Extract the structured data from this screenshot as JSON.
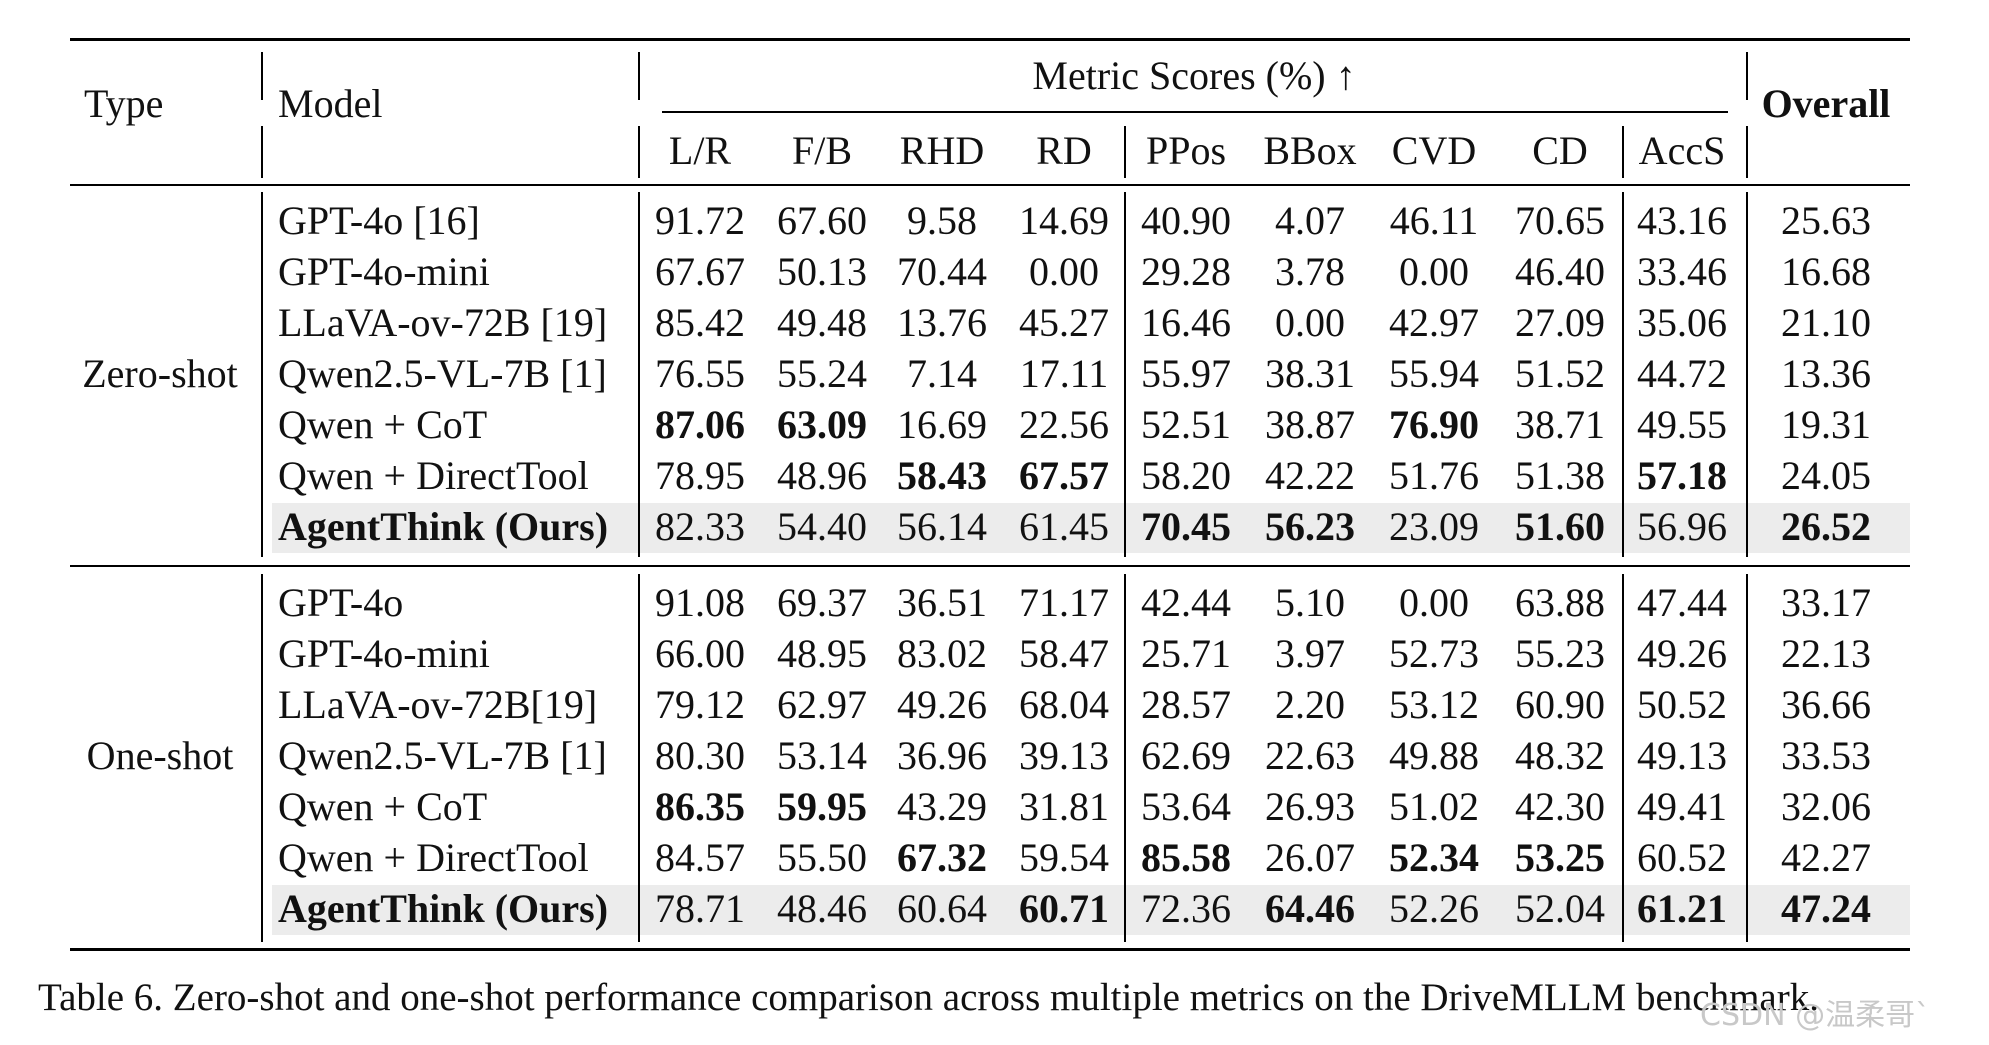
{
  "headers": {
    "type": "Type",
    "model": "Model",
    "metric_group": "Metric Scores (%) ↑",
    "overall": "Overall",
    "metrics": [
      "L/R",
      "F/B",
      "RHD",
      "RD",
      "PPos",
      "BBox",
      "CVD",
      "CD",
      "AccS"
    ]
  },
  "groups": [
    {
      "label": "Zero-shot",
      "rows": [
        {
          "model": "GPT-4o [16]",
          "values": [
            "91.72",
            "67.60",
            "9.58",
            "14.69",
            "40.90",
            "4.07",
            "46.11",
            "70.65",
            "43.16"
          ],
          "overall": "25.63",
          "bold": [],
          "model_bold": false,
          "highlight": false
        },
        {
          "model": "GPT-4o-mini",
          "values": [
            "67.67",
            "50.13",
            "70.44",
            "0.00",
            "29.28",
            "3.78",
            "0.00",
            "46.40",
            "33.46"
          ],
          "overall": "16.68",
          "bold": [],
          "model_bold": false,
          "highlight": false
        },
        {
          "model": "LLaVA-ov-72B [19]",
          "values": [
            "85.42",
            "49.48",
            "13.76",
            "45.27",
            "16.46",
            "0.00",
            "42.97",
            "27.09",
            "35.06"
          ],
          "overall": "21.10",
          "bold": [],
          "model_bold": false,
          "highlight": false
        },
        {
          "model": "Qwen2.5-VL-7B [1]",
          "values": [
            "76.55",
            "55.24",
            "7.14",
            "17.11",
            "55.97",
            "38.31",
            "55.94",
            "51.52",
            "44.72"
          ],
          "overall": "13.36",
          "bold": [],
          "model_bold": false,
          "highlight": false
        },
        {
          "model": "Qwen + CoT",
          "values": [
            "87.06",
            "63.09",
            "16.69",
            "22.56",
            "52.51",
            "38.87",
            "76.90",
            "38.71",
            "49.55"
          ],
          "overall": "19.31",
          "bold": [
            0,
            1,
            6
          ],
          "model_bold": false,
          "highlight": false
        },
        {
          "model": "Qwen + DirectTool",
          "values": [
            "78.95",
            "48.96",
            "58.43",
            "67.57",
            "58.20",
            "42.22",
            "51.76",
            "51.38",
            "57.18"
          ],
          "overall": "24.05",
          "bold": [
            2,
            3,
            8
          ],
          "model_bold": false,
          "highlight": false
        },
        {
          "model": "AgentThink (Ours)",
          "values": [
            "82.33",
            "54.40",
            "56.14",
            "61.45",
            "70.45",
            "56.23",
            "23.09",
            "51.60",
            "56.96"
          ],
          "overall": "26.52",
          "bold": [
            4,
            5,
            7,
            9
          ],
          "model_bold": true,
          "highlight": true
        }
      ]
    },
    {
      "label": "One-shot",
      "rows": [
        {
          "model": "GPT-4o",
          "values": [
            "91.08",
            "69.37",
            "36.51",
            "71.17",
            "42.44",
            "5.10",
            "0.00",
            "63.88",
            "47.44"
          ],
          "overall": "33.17",
          "bold": [],
          "model_bold": false,
          "highlight": false
        },
        {
          "model": "GPT-4o-mini",
          "values": [
            "66.00",
            "48.95",
            "83.02",
            "58.47",
            "25.71",
            "3.97",
            "52.73",
            "55.23",
            "49.26"
          ],
          "overall": "22.13",
          "bold": [],
          "model_bold": false,
          "highlight": false
        },
        {
          "model": "LLaVA-ov-72B[19]",
          "values": [
            "79.12",
            "62.97",
            "49.26",
            "68.04",
            "28.57",
            "2.20",
            "53.12",
            "60.90",
            "50.52"
          ],
          "overall": "36.66",
          "bold": [],
          "model_bold": false,
          "highlight": false
        },
        {
          "model": "Qwen2.5-VL-7B [1]",
          "values": [
            "80.30",
            "53.14",
            "36.96",
            "39.13",
            "62.69",
            "22.63",
            "49.88",
            "48.32",
            "49.13"
          ],
          "overall": "33.53",
          "bold": [],
          "model_bold": false,
          "highlight": false
        },
        {
          "model": "Qwen + CoT",
          "values": [
            "86.35",
            "59.95",
            "43.29",
            "31.81",
            "53.64",
            "26.93",
            "51.02",
            "42.30",
            "49.41"
          ],
          "overall": "32.06",
          "bold": [
            0,
            1
          ],
          "model_bold": false,
          "highlight": false
        },
        {
          "model": "Qwen + DirectTool",
          "values": [
            "84.57",
            "55.50",
            "67.32",
            "59.54",
            "85.58",
            "26.07",
            "52.34",
            "53.25",
            "60.52"
          ],
          "overall": "42.27",
          "bold": [
            2,
            4,
            6,
            7
          ],
          "model_bold": false,
          "highlight": false
        },
        {
          "model": "AgentThink (Ours)",
          "values": [
            "78.71",
            "48.46",
            "60.64",
            "60.71",
            "72.36",
            "64.46",
            "52.26",
            "52.04",
            "61.21"
          ],
          "overall": "47.24",
          "bold": [
            3,
            5,
            8,
            9
          ],
          "model_bold": true,
          "highlight": true
        }
      ]
    }
  ],
  "caption": "Table 6. Zero-shot and one-shot performance comparison across multiple metrics on the DriveMLLM benchmark.",
  "watermark": "CSDN @温柔哥`"
}
